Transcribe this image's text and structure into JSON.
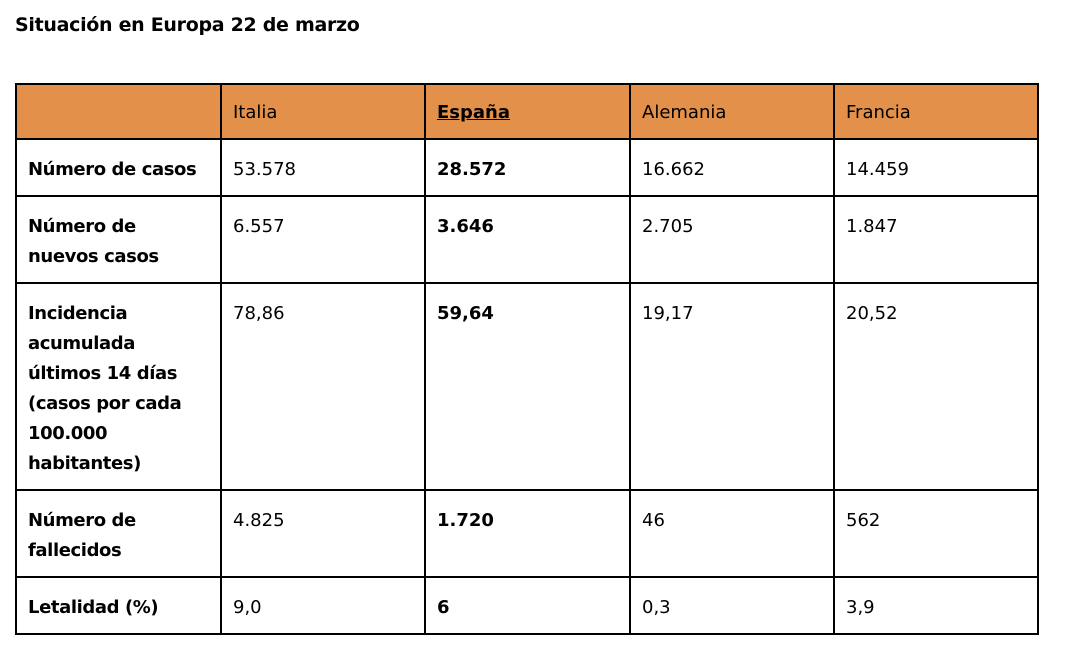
{
  "title": "Situación en Europa 22 de marzo",
  "table": {
    "columns": [
      "Italia",
      "España",
      "Alemania",
      "Francia"
    ],
    "highlight_column": 1,
    "rows": [
      {
        "label": [
          "Número de casos"
        ],
        "values": [
          "53.578",
          "28.572",
          "16.662",
          "14.459"
        ]
      },
      {
        "label": [
          "Número de",
          "nuevos casos"
        ],
        "values": [
          "6.557",
          "3.646",
          "2.705",
          "1.847"
        ]
      },
      {
        "label": [
          "Incidencia",
          "acumulada",
          "últimos 14 días",
          "(casos por cada",
          "100.000",
          "habitantes)"
        ],
        "values": [
          "78,86",
          "59,64",
          "19,17",
          "20,52"
        ]
      },
      {
        "label": [
          "Número de",
          "fallecidos"
        ],
        "values": [
          "4.825",
          "1.720",
          "46",
          "562"
        ]
      },
      {
        "label": [
          "Letalidad (%)"
        ],
        "values": [
          "9,0",
          "6",
          "0,3",
          "3,9"
        ]
      }
    ]
  }
}
